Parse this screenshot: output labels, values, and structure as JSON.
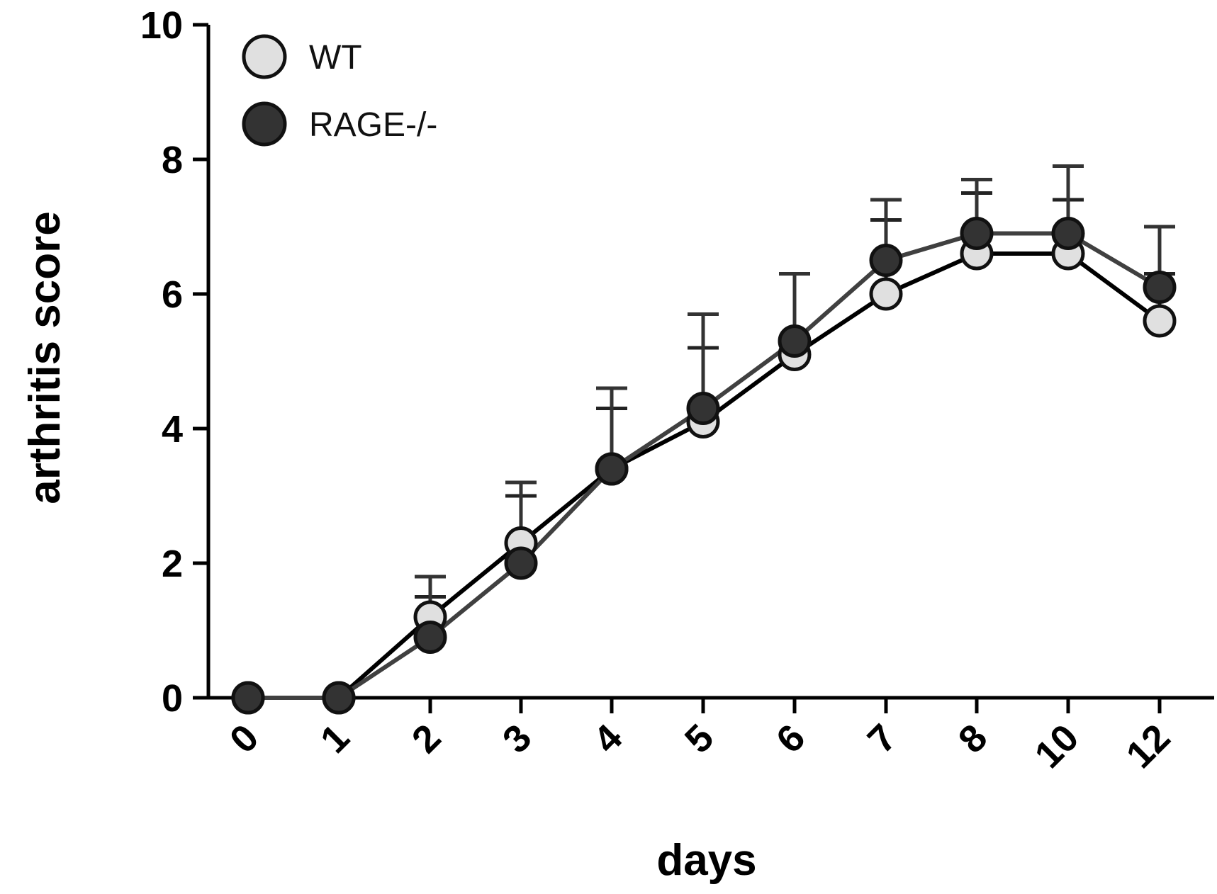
{
  "chart_data": {
    "type": "line",
    "title": "",
    "xlabel": "days",
    "ylabel": "arthritis score",
    "categories": [
      "0",
      "1",
      "2",
      "3",
      "4",
      "5",
      "6",
      "7",
      "8",
      "10",
      "12"
    ],
    "yticks": [
      "0",
      "2",
      "4",
      "6",
      "8",
      "10"
    ],
    "ylim": [
      0,
      10
    ],
    "legend_position": "top-left",
    "series": [
      {
        "name": "WT",
        "marker_fill": "#e0e0e0",
        "line_color": "#000000",
        "values": [
          0,
          0,
          1.2,
          2.3,
          3.4,
          4.1,
          5.1,
          6.0,
          6.6,
          6.6,
          5.6
        ],
        "error_upper": [
          0,
          0,
          1.5,
          3.0,
          4.3,
          5.2,
          6.3,
          7.1,
          7.5,
          7.4,
          6.3
        ]
      },
      {
        "name": "RAGE-/-",
        "marker_fill": "#333333",
        "line_color": "#404040",
        "values": [
          0,
          0,
          0.9,
          2.0,
          3.4,
          4.3,
          5.3,
          6.5,
          6.9,
          6.9,
          6.1
        ],
        "error_upper": [
          0,
          0,
          1.8,
          3.2,
          4.6,
          5.7,
          6.3,
          7.4,
          7.7,
          7.9,
          7.0
        ]
      }
    ]
  }
}
